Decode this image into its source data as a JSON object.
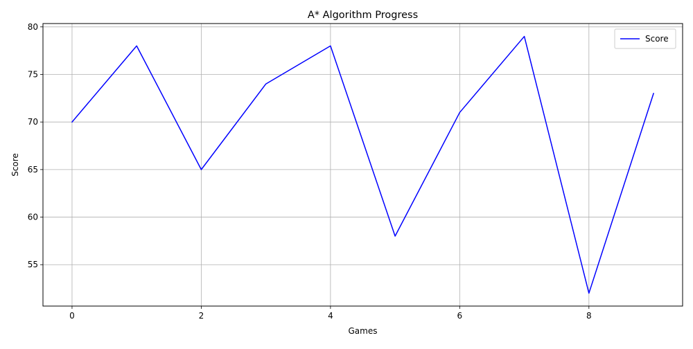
{
  "chart_data": {
    "type": "line",
    "title": "A* Algorithm Progress",
    "xlabel": "Games",
    "ylabel": "Score",
    "x": [
      0,
      1,
      2,
      3,
      4,
      5,
      6,
      7,
      8,
      9
    ],
    "series": [
      {
        "name": "Score",
        "color": "#0000ff",
        "values": [
          70,
          78,
          65,
          74,
          78,
          58,
          71,
          79,
          52,
          73
        ]
      }
    ],
    "xlim": [
      -0.45,
      9.45
    ],
    "ylim": [
      50.65,
      80.35
    ],
    "xticks": [
      0,
      2,
      4,
      6,
      8
    ],
    "yticks": [
      55,
      60,
      65,
      70,
      75,
      80
    ],
    "grid": true,
    "legend_position": "top-right"
  }
}
